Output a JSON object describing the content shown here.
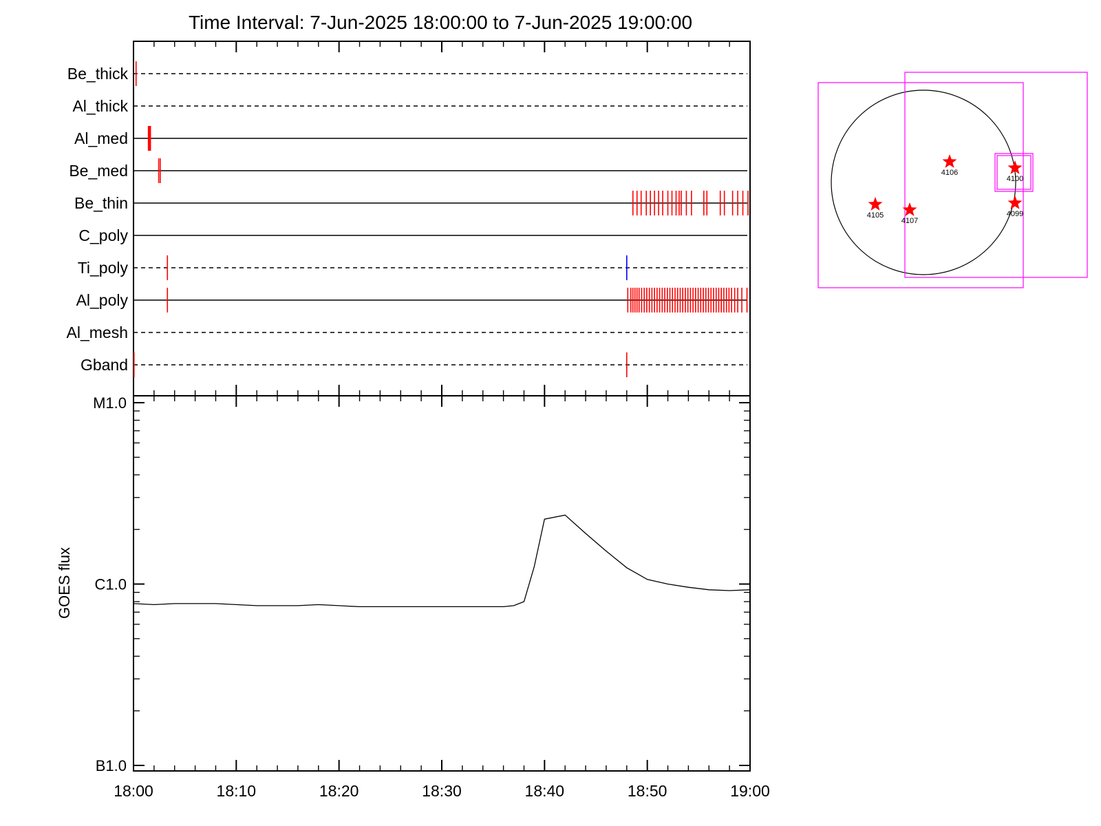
{
  "chart_data": [
    {
      "type": "event_timeline",
      "title": "Time Interval:  7-Jun-2025 18:00:00 to  7-Jun-2025 19:00:00",
      "x_range": [
        "18:00",
        "19:00"
      ],
      "x_tick_labels": [
        "18:00",
        "18:10",
        "18:20",
        "18:30",
        "18:40",
        "18:50",
        "19:00"
      ],
      "colors": {
        "event": "#ff0000",
        "event_alt": "#0000ff",
        "line": "#000000"
      },
      "rows": [
        {
          "name": "Be_thick",
          "style": "dashed",
          "events": [
            0.25
          ]
        },
        {
          "name": "Al_thick",
          "style": "dashed",
          "events": []
        },
        {
          "name": "Al_med",
          "style": "solid",
          "events": [
            1.45,
            1.55,
            1.65
          ]
        },
        {
          "name": "Be_med",
          "style": "solid",
          "events": [
            2.45,
            2.6
          ]
        },
        {
          "name": "Be_thin",
          "style": "solid",
          "events": [
            48.6,
            49.0,
            49.4,
            49.9,
            50.3,
            50.7,
            51.1,
            51.5,
            52.0,
            52.4,
            52.8,
            53.1,
            53.3,
            53.8,
            54.3,
            55.5,
            55.8,
            57.1,
            57.5,
            58.3,
            58.8,
            59.3,
            59.8
          ]
        },
        {
          "name": "C_poly",
          "style": "solid",
          "events": []
        },
        {
          "name": "Ti_poly",
          "style": "dashed",
          "events": [
            3.3
          ],
          "alt_events": [
            48.0
          ]
        },
        {
          "name": "Al_poly",
          "style": "solid",
          "events": [
            3.3,
            48.1,
            48.4,
            48.6,
            48.8,
            49.0,
            49.2,
            49.45,
            49.7,
            49.95,
            50.2,
            50.45,
            50.7,
            50.95,
            51.2,
            51.45,
            51.7,
            51.95,
            52.2,
            52.45,
            52.7,
            52.95,
            53.2,
            53.45,
            53.7,
            53.95,
            54.2,
            54.45,
            54.7,
            54.95,
            55.2,
            55.45,
            55.7,
            55.95,
            56.2,
            56.45,
            56.7,
            56.95,
            57.2,
            57.45,
            57.7,
            57.95,
            58.2,
            58.5,
            58.8,
            59.2,
            59.7
          ]
        },
        {
          "name": "Al_mesh",
          "style": "dashed",
          "events": []
        },
        {
          "name": "Gband",
          "style": "dashed",
          "events": [
            0.05,
            48.0
          ]
        }
      ]
    },
    {
      "type": "line",
      "ylabel": "GOES flux",
      "y_scale": "log",
      "y_tick_labels": [
        "M1.0",
        "C1.0",
        "B1.0"
      ],
      "y_range_class": [
        "B1.0",
        "M1.0"
      ],
      "x_range": [
        "18:00",
        "19:00"
      ],
      "x_tick_labels": [
        "18:00",
        "18:10",
        "18:20",
        "18:30",
        "18:40",
        "18:50",
        "19:00"
      ],
      "series": [
        {
          "x_minutes": [
            0,
            2,
            4,
            6,
            8,
            10,
            12,
            14,
            16,
            18,
            20,
            22,
            24,
            26,
            28,
            30,
            32,
            34,
            36,
            37,
            38,
            39,
            40,
            42,
            44,
            46,
            48,
            50,
            52,
            54,
            56,
            58,
            60
          ],
          "flux_c_class": [
            0.78,
            0.77,
            0.78,
            0.78,
            0.78,
            0.77,
            0.76,
            0.76,
            0.76,
            0.77,
            0.76,
            0.75,
            0.75,
            0.75,
            0.75,
            0.75,
            0.75,
            0.75,
            0.75,
            0.76,
            0.8,
            1.25,
            2.28,
            2.4,
            1.9,
            1.52,
            1.23,
            1.06,
            1.0,
            0.96,
            0.93,
            0.92,
            0.93
          ]
        }
      ]
    }
  ],
  "solar_map": {
    "regions": [
      "4106",
      "4100",
      "4105",
      "4107",
      "4099"
    ],
    "colors": {
      "limb": "#000000",
      "box": "#ff00ff",
      "marker": "#ff0000"
    }
  }
}
